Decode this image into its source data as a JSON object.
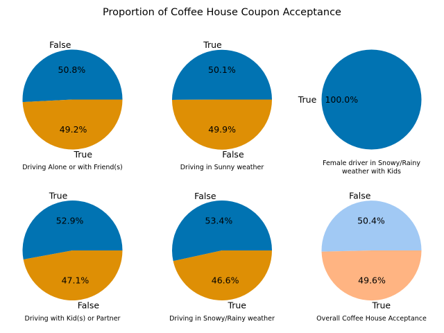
{
  "figure": {
    "title": "Proportion of Coffee House Coupon Acceptance"
  },
  "chart_data": [
    {
      "type": "pie",
      "xlabel": "Driving Alone or with Friend(s)",
      "slices": [
        {
          "label": "False",
          "value": 50.8,
          "pct_text": "50.8%",
          "color": "#0173b2"
        },
        {
          "label": "True",
          "value": 49.2,
          "pct_text": "49.2%",
          "color": "#de8f05"
        }
      ]
    },
    {
      "type": "pie",
      "xlabel": "Driving in Sunny weather",
      "slices": [
        {
          "label": "True",
          "value": 50.1,
          "pct_text": "50.1%",
          "color": "#0173b2"
        },
        {
          "label": "False",
          "value": 49.9,
          "pct_text": "49.9%",
          "color": "#de8f05"
        }
      ]
    },
    {
      "type": "pie",
      "xlabel": [
        "Female driver in Snowy/Rainy",
        "weather with Kids"
      ],
      "slices": [
        {
          "label": "True",
          "value": 100.0,
          "pct_text": "100.0%",
          "color": "#0173b2"
        }
      ]
    },
    {
      "type": "pie",
      "xlabel": "Driving with Kid(s) or Partner",
      "slices": [
        {
          "label": "True",
          "value": 52.9,
          "pct_text": "52.9%",
          "color": "#0173b2"
        },
        {
          "label": "False",
          "value": 47.1,
          "pct_text": "47.1%",
          "color": "#de8f05"
        }
      ]
    },
    {
      "type": "pie",
      "xlabel": "Driving in Snowy/Rainy weather",
      "slices": [
        {
          "label": "False",
          "value": 53.4,
          "pct_text": "53.4%",
          "color": "#0173b2"
        },
        {
          "label": "True",
          "value": 46.6,
          "pct_text": "46.6%",
          "color": "#de8f05"
        }
      ]
    },
    {
      "type": "pie",
      "xlabel": "Overall Coffee House Acceptance",
      "slices": [
        {
          "label": "False",
          "value": 50.4,
          "pct_text": "50.4%",
          "color": "#a1c9f4"
        },
        {
          "label": "True",
          "value": 49.6,
          "pct_text": "49.6%",
          "color": "#ffb482"
        }
      ]
    }
  ]
}
